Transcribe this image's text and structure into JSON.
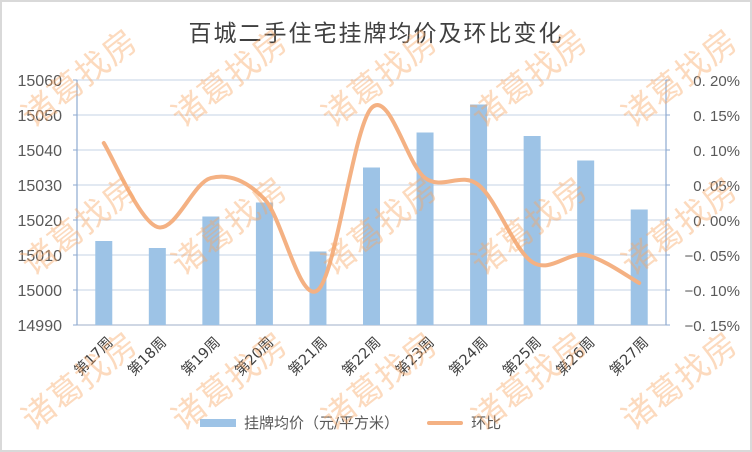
{
  "title": "百城二手住宅挂牌均价及环比变化",
  "legend": {
    "bar_label": "挂牌均价（元/平方米）",
    "line_label": "环比"
  },
  "watermark": "诸葛找房",
  "colors": {
    "bar": "#9DC3E6",
    "line": "#F4B183",
    "axis": "#8EAAD0",
    "grid": "#D9E2EE",
    "text": "#595959",
    "watermark": "#F7A864"
  },
  "chart_data": {
    "type": "bar+line",
    "title": "百城二手住宅挂牌均价及环比变化",
    "categories": [
      "第17周",
      "第18周",
      "第19周",
      "第20周",
      "第21周",
      "第22周",
      "第23周",
      "第24周",
      "第25周",
      "第26周",
      "第27周"
    ],
    "series": [
      {
        "name": "挂牌均价（元/平方米）",
        "type": "bar",
        "axis": "left",
        "values": [
          15014,
          15012,
          15021,
          15025,
          15011,
          15035,
          15045,
          15053,
          15044,
          15037,
          15023
        ]
      },
      {
        "name": "环比",
        "type": "line",
        "axis": "right",
        "unit": "%",
        "values": [
          0.11,
          -0.01,
          0.06,
          0.03,
          -0.1,
          0.16,
          0.06,
          0.05,
          -0.06,
          -0.05,
          -0.09
        ]
      }
    ],
    "left_axis": {
      "min": 14990,
      "max": 15060,
      "step": 10,
      "ticks": [
        "15060",
        "15050",
        "15040",
        "15030",
        "15020",
        "15010",
        "15000",
        "14990"
      ]
    },
    "right_axis": {
      "min": -0.15,
      "max": 0.2,
      "step": 0.05,
      "ticks": [
        "0.20%",
        "0.15%",
        "0.10%",
        "0.05%",
        "0.00%",
        "-0.05%",
        "-0.10%",
        "-0.15%"
      ]
    },
    "xlabel": "",
    "ylabel": "",
    "grid": true,
    "legend_position": "bottom"
  }
}
